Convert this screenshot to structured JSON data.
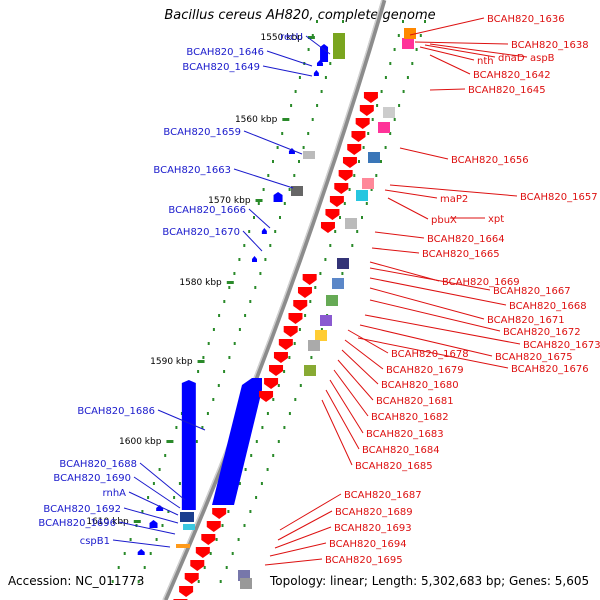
{
  "title": "Bacillus cereus AH820, complete genome",
  "accession_label": "Accession: NC_011773",
  "stats_label": "Topology: linear; Length: 5,302,683 bp; Genes: 5,605",
  "colors": {
    "left_label": "#1a1acc",
    "right_label": "#dd1111",
    "tick": "#2a8a2a",
    "axis": "#8c8c8c",
    "minus_gene": "#0000ff",
    "plus_gene": "#ff0000"
  },
  "ticks": [
    {
      "label": "1550 kbp",
      "kbp": 1550
    },
    {
      "label": "1560 kbp",
      "kbp": 1560
    },
    {
      "label": "1570 kbp",
      "kbp": 1570
    },
    {
      "label": "1580 kbp",
      "kbp": 1580
    },
    {
      "label": "1590 kbp",
      "kbp": 1590
    },
    {
      "label": "1600 kbp",
      "kbp": 1600
    },
    {
      "label": "1610 kbp",
      "kbp": 1610
    }
  ],
  "left_labels": [
    "recU",
    "BCAH820_1646",
    "BCAH820_1649",
    "BCAH820_1659",
    "BCAH820_1663",
    "BCAH820_1666",
    "BCAH820_1670",
    "BCAH820_1686",
    "BCAH820_1688",
    "BCAH820_1690",
    "rnhA",
    "BCAH820_1692",
    "BCAH820_1696",
    "cspB1"
  ],
  "right_labels": [
    "BCAH820_1636",
    "BCAH820_1638",
    "nth",
    "dnaD",
    "aspB",
    "BCAH820_1642",
    "BCAH820_1645",
    "BCAH820_1656",
    "BCAH820_1657",
    "maP2",
    "pbuX",
    "xpt",
    "BCAH820_1664",
    "BCAH820_1665",
    "BCAH820_1669",
    "BCAH820_1667",
    "BCAH820_1668",
    "BCAH820_1671",
    "BCAH820_1672",
    "BCAH820_1673",
    "BCAH820_1675",
    "BCAH820_1676",
    "BCAH820_1678",
    "BCAH820_1679",
    "BCAH820_1680",
    "BCAH820_1681",
    "BCAH820_1682",
    "BCAH820_1683",
    "BCAH820_1684",
    "BCAH820_1685",
    "BCAH820_1687",
    "BCAH820_1689",
    "BCAH820_1693",
    "BCAH820_1694",
    "BCAH820_1695"
  ]
}
